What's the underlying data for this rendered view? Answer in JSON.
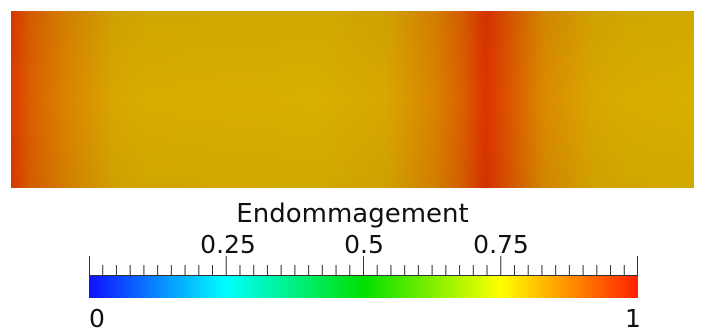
{
  "legend": {
    "title": "Endommagement",
    "min_label": "0",
    "max_label": "1",
    "tick_labels": [
      "0.25",
      "0.5",
      "0.75"
    ],
    "colormap": [
      "#1010ff",
      "#00ffff",
      "#00e000",
      "#ffff00",
      "#ff2000"
    ]
  },
  "field": {
    "base_color": "#d8b000",
    "peak_color": "#dd3300",
    "damage_profile": [
      {
        "x": 0.0,
        "d": 0.93
      },
      {
        "x": 0.03,
        "d": 0.82
      },
      {
        "x": 0.08,
        "d": 0.72
      },
      {
        "x": 0.15,
        "d": 0.62
      },
      {
        "x": 0.2,
        "d": 0.6
      },
      {
        "x": 0.45,
        "d": 0.59
      },
      {
        "x": 0.55,
        "d": 0.62
      },
      {
        "x": 0.62,
        "d": 0.72
      },
      {
        "x": 0.66,
        "d": 0.82
      },
      {
        "x": 0.695,
        "d": 0.95
      },
      {
        "x": 0.73,
        "d": 0.85
      },
      {
        "x": 0.78,
        "d": 0.7
      },
      {
        "x": 0.85,
        "d": 0.62
      },
      {
        "x": 0.9,
        "d": 0.6
      },
      {
        "x": 1.0,
        "d": 0.59
      }
    ]
  }
}
